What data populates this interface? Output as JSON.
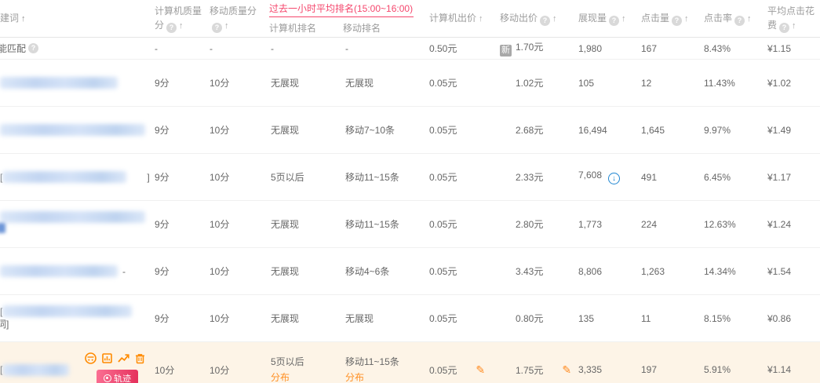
{
  "header": {
    "keyword": "建词",
    "pc_quality": "计算机质量分",
    "mo_quality": "移动质量分",
    "rank_group_title": "过去一小时平均排名(15:00~16:00)",
    "rank_sub_pc": "计算机排名",
    "rank_sub_mo": "移动排名",
    "pc_bid": "计算机出价",
    "mo_bid": "移动出价",
    "impressions": "展现量",
    "clicks": "点击量",
    "ctr": "点击率",
    "cpc": "平均点击花费"
  },
  "labels": {
    "new_badge": "新",
    "distribution_link": "分布",
    "track_badge": "轨迹"
  },
  "icons": {
    "help": "?",
    "sort_asc": "↑",
    "down_arrow": "↓",
    "pencil": "✎",
    "tools": [
      "insight-icon",
      "report-icon",
      "trend-chart-icon",
      "delete-icon"
    ]
  },
  "colors": {
    "accent_red": "#f5476d",
    "orange": "#ff8a00",
    "link_orange": "#ff9024",
    "blue": "#1f86d2",
    "highlight_bg": "#fdf4e7",
    "new_badge_gray": "#a8a8a8"
  },
  "table": {
    "rows": [
      {
        "small": true,
        "highlight": false,
        "tools": false,
        "kw": {
          "prefix": "",
          "text": "能匹配",
          "blur": 0,
          "gap": 0,
          "suffix": "",
          "help": true,
          "line2": null,
          "line2blur": false
        },
        "pc_score": "-",
        "mo_score": "-",
        "pc_rank": "-",
        "mo_rank": "-",
        "rank_links": false,
        "pc_bid": "0.50元",
        "pc_bid_edit": false,
        "mo_bid": "1.70元",
        "mo_bid_new": true,
        "mo_bid_edit": false,
        "imp": "1,980",
        "imp_down": false,
        "clicks": "167",
        "ctr": "8.43%",
        "cpc": "¥1.15"
      },
      {
        "small": false,
        "highlight": false,
        "tools": false,
        "kw": {
          "prefix": "",
          "text": "",
          "blur": 150,
          "gap": 0,
          "suffix": "",
          "help": false,
          "line2": null,
          "line2blur": false
        },
        "pc_score": "9分",
        "mo_score": "10分",
        "pc_rank": "无展现",
        "mo_rank": "无展现",
        "rank_links": false,
        "pc_bid": "0.05元",
        "pc_bid_edit": false,
        "mo_bid": "1.02元",
        "mo_bid_new": false,
        "mo_bid_edit": false,
        "imp": "105",
        "imp_down": false,
        "clicks": "12",
        "ctr": "11.43%",
        "cpc": "¥1.02"
      },
      {
        "small": false,
        "highlight": false,
        "tools": false,
        "kw": {
          "prefix": "",
          "text": "",
          "blur": 185,
          "gap": 0,
          "suffix": "",
          "help": false,
          "line2": null,
          "line2blur": false
        },
        "pc_score": "9分",
        "mo_score": "10分",
        "pc_rank": "无展现",
        "mo_rank": "移动7~10条",
        "rank_links": false,
        "pc_bid": "0.05元",
        "pc_bid_edit": false,
        "mo_bid": "2.68元",
        "mo_bid_new": false,
        "mo_bid_edit": false,
        "imp": "16,494",
        "imp_down": false,
        "clicks": "1,645",
        "ctr": "9.97%",
        "cpc": "¥1.49"
      },
      {
        "small": false,
        "highlight": false,
        "tools": false,
        "kw": {
          "prefix": "[",
          "text": "",
          "blur": 158,
          "gap": 26,
          "suffix": "]",
          "help": false,
          "line2": null,
          "line2blur": false
        },
        "pc_score": "9分",
        "mo_score": "10分",
        "pc_rank": "5页以后",
        "mo_rank": "移动11~15条",
        "rank_links": false,
        "pc_bid": "0.05元",
        "pc_bid_edit": false,
        "mo_bid": "2.33元",
        "mo_bid_new": false,
        "mo_bid_edit": false,
        "imp": "7,608",
        "imp_down": true,
        "clicks": "491",
        "ctr": "6.45%",
        "cpc": "¥1.17"
      },
      {
        "small": false,
        "highlight": false,
        "tools": false,
        "kw": {
          "prefix": "",
          "text": "",
          "blur": 185,
          "gap": 0,
          "suffix": "",
          "help": false,
          "line2": null,
          "line2blur": true
        },
        "pc_score": "9分",
        "mo_score": "10分",
        "pc_rank": "无展现",
        "mo_rank": "移动11~15条",
        "rank_links": false,
        "pc_bid": "0.05元",
        "pc_bid_edit": false,
        "mo_bid": "2.80元",
        "mo_bid_new": false,
        "mo_bid_edit": false,
        "imp": "1,773",
        "imp_down": false,
        "clicks": "224",
        "ctr": "12.63%",
        "cpc": "¥1.24"
      },
      {
        "small": false,
        "highlight": false,
        "tools": false,
        "kw": {
          "prefix": "",
          "text": "",
          "blur": 150,
          "gap": 6,
          "suffix": "-",
          "help": false,
          "line2": null,
          "line2blur": false
        },
        "pc_score": "9分",
        "mo_score": "10分",
        "pc_rank": "无展现",
        "mo_rank": "移动4~6条",
        "rank_links": false,
        "pc_bid": "0.05元",
        "pc_bid_edit": false,
        "mo_bid": "3.43元",
        "mo_bid_new": false,
        "mo_bid_edit": false,
        "imp": "8,806",
        "imp_down": false,
        "clicks": "1,263",
        "ctr": "14.34%",
        "cpc": "¥1.54"
      },
      {
        "small": false,
        "highlight": false,
        "tools": false,
        "kw": {
          "prefix": "[",
          "text": "",
          "blur": 165,
          "gap": 0,
          "suffix": "",
          "help": false,
          "line2": "词]",
          "line2blur": false
        },
        "pc_score": "9分",
        "mo_score": "10分",
        "pc_rank": "无展现",
        "mo_rank": "无展现",
        "rank_links": false,
        "pc_bid": "0.05元",
        "pc_bid_edit": false,
        "mo_bid": "0.80元",
        "mo_bid_new": false,
        "mo_bid_edit": false,
        "imp": "135",
        "imp_down": false,
        "clicks": "11",
        "ctr": "8.15%",
        "cpc": "¥0.86"
      },
      {
        "small": false,
        "highlight": true,
        "tools": true,
        "kw": {
          "prefix": "[",
          "text": "",
          "blur": 85,
          "gap": 0,
          "suffix": "",
          "help": false,
          "line2": null,
          "line2blur": false
        },
        "pc_score": "10分",
        "mo_score": "10分",
        "pc_rank": "5页以后",
        "mo_rank": "移动11~15条",
        "rank_links": true,
        "pc_bid": "0.05元",
        "pc_bid_edit": true,
        "mo_bid": "1.75元",
        "mo_bid_new": false,
        "mo_bid_edit": true,
        "imp": "3,335",
        "imp_down": false,
        "clicks": "197",
        "ctr": "5.91%",
        "cpc": "¥1.14"
      }
    ]
  }
}
